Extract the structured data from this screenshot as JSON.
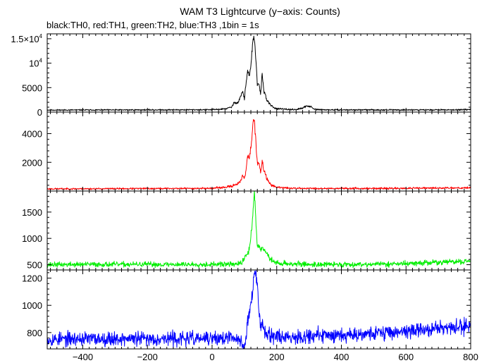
{
  "chart_data": {
    "type": "line",
    "title": "WAM T3 Lightcurve (y−axis: Counts)",
    "subtitle": "black:TH0, red:TH1, green:TH2, blue:TH3 ,1bin = 1s",
    "xlabel": "",
    "ylabel": "",
    "xlim": [
      -510,
      800
    ],
    "x_ticks": [
      -400,
      -200,
      0,
      200,
      400,
      600,
      800
    ],
    "x_tick_labels": [
      "−400",
      "−200",
      "0",
      "200",
      "400",
      "600",
      "800"
    ],
    "grid": false,
    "legend": "none",
    "panels": [
      {
        "name": "TH0",
        "color": "#000000",
        "ylim": [
          0,
          16000
        ],
        "y_ticks": [
          {
            "value": 0,
            "mant": "0",
            "exp": ""
          },
          {
            "value": 5000,
            "mant": "5000",
            "exp": ""
          },
          {
            "value": 10000,
            "mant": "10",
            "exp": "4"
          },
          {
            "value": 15000,
            "mant": "1.5×10",
            "exp": "4"
          }
        ],
        "x": [
          -510,
          -400,
          -200,
          0,
          40,
          60,
          70,
          80,
          90,
          95,
          100,
          105,
          110,
          115,
          120,
          125,
          128,
          131,
          134,
          137,
          140,
          145,
          150,
          155,
          160,
          165,
          170,
          180,
          190,
          200,
          230,
          260,
          280,
          295,
          305,
          315,
          330,
          360,
          400,
          500,
          600,
          700,
          800
        ],
        "y": [
          420,
          430,
          450,
          480,
          650,
          1000,
          2000,
          1900,
          3500,
          4200,
          2600,
          6000,
          8500,
          7200,
          9500,
          13500,
          15400,
          14500,
          12000,
          9000,
          5500,
          6000,
          3500,
          7800,
          4500,
          3500,
          2300,
          1500,
          950,
          700,
          550,
          520,
          800,
          1300,
          1100,
          600,
          500,
          460,
          450,
          450,
          450,
          460,
          480
        ],
        "noise": 80,
        "seed": 11
      },
      {
        "name": "TH1",
        "color": "#ff0000",
        "ylim": [
          0,
          5500
        ],
        "y_ticks": [
          {
            "value": 2000,
            "mant": "2000",
            "exp": ""
          },
          {
            "value": 4000,
            "mant": "4000",
            "exp": ""
          }
        ],
        "x": [
          -510,
          -400,
          -200,
          0,
          40,
          60,
          70,
          80,
          90,
          95,
          100,
          105,
          110,
          115,
          120,
          125,
          128,
          131,
          134,
          137,
          140,
          145,
          150,
          155,
          160,
          165,
          170,
          180,
          190,
          200,
          230,
          260,
          300,
          400,
          500,
          600,
          700,
          800
        ],
        "y": [
          150,
          155,
          170,
          190,
          260,
          330,
          450,
          520,
          700,
          1100,
          850,
          1500,
          2500,
          2300,
          3000,
          4300,
          5200,
          4800,
          3800,
          2800,
          2000,
          1900,
          1300,
          2000,
          1500,
          1250,
          800,
          500,
          350,
          260,
          210,
          190,
          180,
          185,
          180,
          190,
          210,
          230
        ],
        "noise": 35,
        "seed": 23
      },
      {
        "name": "TH2",
        "color": "#00ee00",
        "ylim": [
          400,
          1900
        ],
        "y_ticks": [
          {
            "value": 500,
            "mant": "500",
            "exp": ""
          },
          {
            "value": 1000,
            "mant": "1000",
            "exp": ""
          },
          {
            "value": 1500,
            "mant": "1500",
            "exp": ""
          }
        ],
        "x": [
          -510,
          -400,
          -200,
          0,
          60,
          90,
          100,
          105,
          110,
          115,
          120,
          125,
          128,
          131,
          134,
          137,
          140,
          145,
          150,
          155,
          160,
          170,
          180,
          190,
          200,
          250,
          300,
          400,
          500,
          600,
          700,
          800
        ],
        "y": [
          500,
          505,
          505,
          505,
          510,
          520,
          620,
          700,
          680,
          800,
          1050,
          1350,
          1600,
          1850,
          1550,
          1150,
          900,
          850,
          800,
          860,
          780,
          720,
          610,
          560,
          530,
          515,
          505,
          505,
          510,
          520,
          545,
          565
        ],
        "noise": 30,
        "seed": 37
      },
      {
        "name": "TH3",
        "color": "#0000ff",
        "ylim": [
          680,
          1260
        ],
        "y_ticks": [
          {
            "value": 800,
            "mant": "800",
            "exp": ""
          },
          {
            "value": 1000,
            "mant": "1000",
            "exp": ""
          },
          {
            "value": 1200,
            "mant": "1200",
            "exp": ""
          }
        ],
        "x": [
          -510,
          -400,
          -300,
          -200,
          -100,
          0,
          60,
          90,
          100,
          110,
          120,
          125,
          130,
          134,
          138,
          142,
          146,
          150,
          155,
          160,
          170,
          180,
          200,
          250,
          300,
          400,
          500,
          600,
          700,
          800
        ],
        "y": [
          750,
          755,
          755,
          755,
          755,
          755,
          760,
          740,
          680,
          880,
          1000,
          1100,
          1200,
          1255,
          1180,
          1050,
          940,
          880,
          860,
          830,
          800,
          790,
          770,
          770,
          775,
          785,
          795,
          810,
          830,
          845
        ],
        "noise": 32,
        "seed": 53
      }
    ]
  }
}
